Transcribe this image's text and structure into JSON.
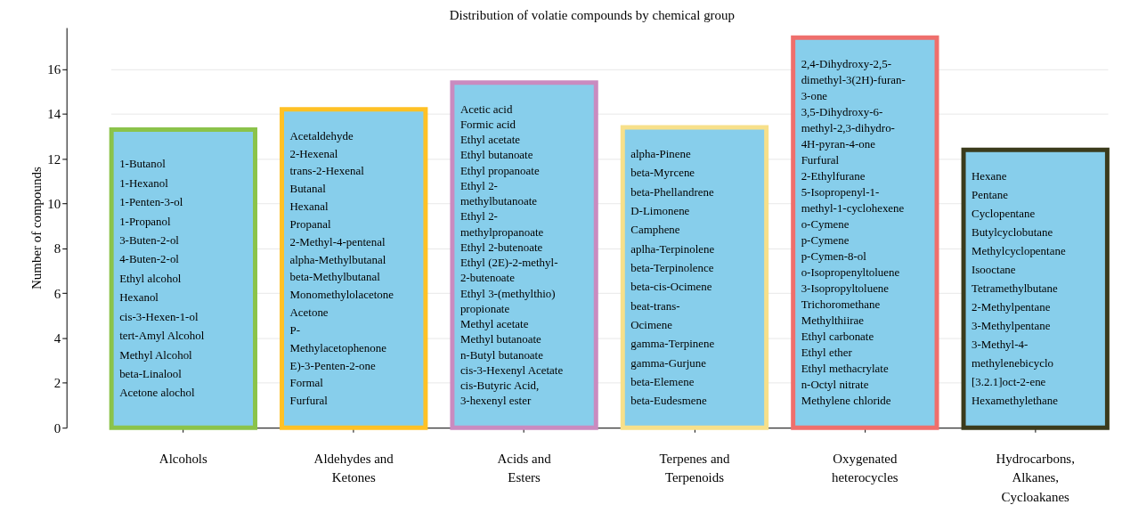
{
  "chart_data": {
    "type": "bar",
    "title": "Distribution of volatie compounds by chemical group",
    "ylabel": "Number of compounds",
    "categories": [
      "Alcohols",
      "Aldehydes and Ketones",
      "Acids and Esters",
      "Terpenes and Terpenoids",
      "Oxygenated heterocycles",
      "Hydrocarbons, Alkanes, Cycloakanes"
    ],
    "values": [
      13.3,
      14.2,
      15.4,
      13.4,
      17.4,
      12.4
    ],
    "color": "#87ceeb",
    "colors": [
      "#8bc34a",
      "#ffc125",
      "#c98bc0",
      "#f7e08a",
      "#ef6f6c",
      "#3b3b1c"
    ],
    "ylim": [
      0,
      17.85
    ],
    "yticks": [
      0,
      2,
      4,
      6,
      8,
      10,
      12,
      14,
      16
    ],
    "grid": "y",
    "annotations": [
      "1-Butanol\n1-Hexanol\n1-Penten-3-ol\n1-Propanol\n3-Buten-2-ol\n4-Buten-2-ol\nEthyl alcohol\nHexanol\ncis-3-Hexen-1-ol\ntert-Amyl Alcohol\nMethyl Alcohol\nbeta-Linalool\nAcetone alochol",
      "Acetaldehyde\n2-Hexenal\ntrans-2-Hexenal\nButanal\nHexanal\nPropanal\n2-Methyl-4-pentenal\nalpha-Methylbutanal\nbeta-Methylbutanal\nMonomethylolacetone\nAcetone\nP-\nMethylacetophenone\nE)-3-Penten-2-one\nFormal\nFurfural",
      "Acetic acid\nFormic acid\nEthyl acetate\nEthyl butanoate\nEthyl propanoate\nEthyl 2-\nmethylbutanoate\nEthyl 2-\nmethylpropanoate\nEthyl 2-butenoate\nEthyl (2E)-2-methyl-\n2-butenoate\nEthyl 3-(methylthio)\npropionate\nMethyl acetate\nMethyl butanoate\nn-Butyl butanoate\ncis-3-Hexenyl Acetate\ncis-Butyric Acid,\n3-hexenyl ester",
      "alpha-Pinene\nbeta-Myrcene\nbeta-Phellandrene\nD-Limonene\nCamphene\naplha-Terpinolene\nbeta-Terpinolence\nbeta-cis-Ocimene\nbeat-trans-\nOcimene\ngamma-Terpinene\ngamma-Gurjune\nbeta-Elemene\nbeta-Eudesmene",
      "2,4-Dihydroxy-2,5-\ndimethyl-3(2H)-furan-\n3-one\n3,5-Dihydroxy-6-\nmethyl-2,3-dihydro-\n4H-pyran-4-one\nFurfural\n2-Ethylfurane\n5-Isopropenyl-1-\nmethyl-1-cyclohexene\no-Cymene\np-Cymene\np-Cymen-8-ol\no-Isopropenyltoluene\n3-Isopropyltoluene\nTrichoromethane\nMethylthiirae\nEthyl carbonate\nEthyl ether\nEthyl methacrylate\nn-Octyl nitrate\nMethylene chloride",
      "Hexane\nPentane\nCyclopentane\nButylcyclobutane\nMethylcyclopentane\nIsooctane\nTetramethylbutane\n2-Methylpentane\n3-Methylpentane\n3-Methyl-4-\nmethylenebicyclo\n[3.2.1]oct-2-ene\nHexamethylethane"
    ]
  }
}
